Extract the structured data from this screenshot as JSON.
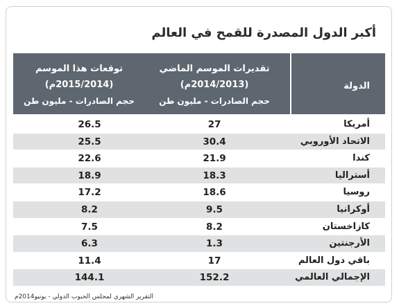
{
  "title": "أكبر الدول المصدرة للقمح في العالم",
  "header": {
    "country": "الدولة",
    "prev_season": {
      "line1": "تقديرات الموسم الماضي",
      "line2": "(2014/2013م)",
      "line3": "حجم الصادرات - مليون طن"
    },
    "this_season": {
      "line1": "توقعات هذا الموسم",
      "line2": "(2015/2014م)",
      "line3": "حجم الصادرات - مليون طن"
    }
  },
  "rows": [
    {
      "country": "أمريكا",
      "prev": "27",
      "cur": "26.5"
    },
    {
      "country": "الاتحاد الأوروبي",
      "prev": "30.4",
      "cur": "25.5"
    },
    {
      "country": "كندا",
      "prev": "21.9",
      "cur": "22.6"
    },
    {
      "country": "أستراليا",
      "prev": "18.3",
      "cur": "18.9"
    },
    {
      "country": "روسيا",
      "prev": "18.6",
      "cur": "17.2"
    },
    {
      "country": "أوكرانيا",
      "prev": "9.5",
      "cur": "8.2"
    },
    {
      "country": "كازاخستان",
      "prev": "8.2",
      "cur": "7.5"
    },
    {
      "country": "الأرجنتين",
      "prev": "1.3",
      "cur": "6.3"
    },
    {
      "country": "باقي دول العالم",
      "prev": "17",
      "cur": "11.4"
    },
    {
      "country": "الإجمالي العالمي",
      "prev": "152.2",
      "cur": "144.1"
    }
  ],
  "footer": "التقرير الشهري لمجلس الحبوب الدولي - يونيو2014م"
}
